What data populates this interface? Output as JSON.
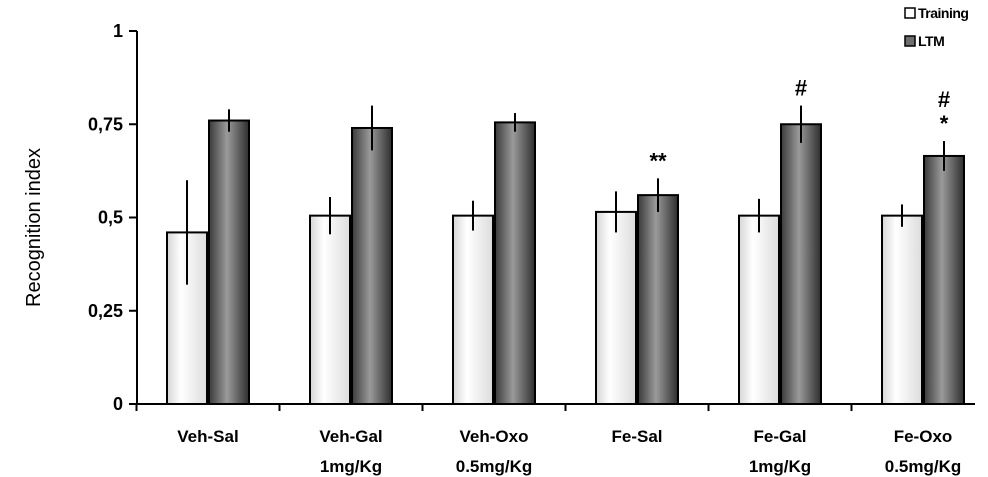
{
  "chart_data": {
    "type": "bar",
    "ylabel": "Recognition index",
    "ylim": [
      0,
      1
    ],
    "yticks": [
      "0",
      "0,25",
      "0,5",
      "0,75",
      "1"
    ],
    "grid": false,
    "legend_position": "top-right",
    "categories": [
      [
        "Veh-Sal",
        ""
      ],
      [
        "Veh-Gal",
        "1mg/Kg"
      ],
      [
        "Veh-Oxo",
        "0.5mg/Kg"
      ],
      [
        "Fe-Sal",
        ""
      ],
      [
        "Fe-Gal",
        "1mg/Kg"
      ],
      [
        "Fe-Oxo",
        "0.5mg/Kg"
      ]
    ],
    "series": [
      {
        "name": "Training",
        "color": "#f2f2f2",
        "values": [
          0.46,
          0.505,
          0.505,
          0.515,
          0.505,
          0.505
        ],
        "error": [
          0.14,
          0.05,
          0.04,
          0.055,
          0.045,
          0.03
        ],
        "annotations": [
          "",
          "",
          "",
          "",
          "",
          ""
        ]
      },
      {
        "name": "LTM",
        "color": "#6e6e6e",
        "values": [
          0.76,
          0.74,
          0.755,
          0.56,
          0.75,
          0.665
        ],
        "error": [
          0.03,
          0.06,
          0.025,
          0.045,
          0.05,
          0.04
        ],
        "annotations": [
          "",
          "",
          "",
          "**",
          "#",
          "#\n*"
        ]
      }
    ]
  }
}
